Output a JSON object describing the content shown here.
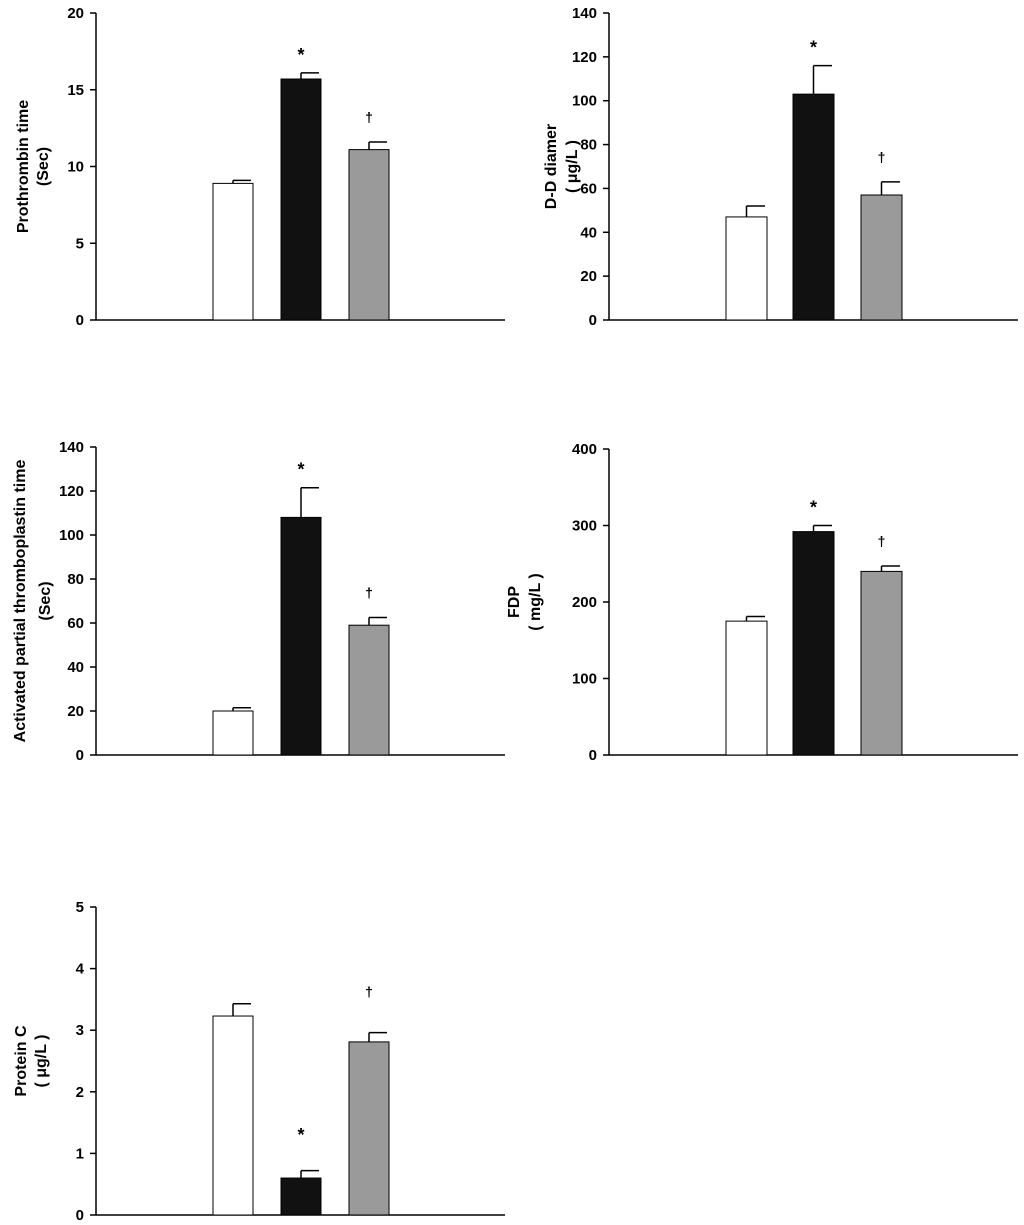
{
  "colors": {
    "group1": "#ffffff",
    "group2": "#111111",
    "group3": "#9a9a9a",
    "axis": "#000000"
  },
  "chart_data": [
    {
      "type": "bar",
      "ylabel_lines": [
        "Prothrombin time",
        "(Sec)"
      ],
      "ylim": [
        0,
        20
      ],
      "yticks": [
        0,
        5,
        10,
        15,
        20
      ],
      "values": [
        8.9,
        15.7,
        11.1
      ],
      "errors": [
        0.2,
        0.4,
        0.5
      ],
      "markers": [
        "",
        "*",
        "†"
      ]
    },
    {
      "type": "bar",
      "ylabel_lines": [
        "D-D diamer",
        "( μg/L )"
      ],
      "ylim": [
        0,
        140
      ],
      "yticks": [
        0,
        20,
        40,
        60,
        80,
        100,
        120,
        140
      ],
      "values": [
        47,
        103,
        57
      ],
      "errors": [
        5,
        13,
        6
      ],
      "markers": [
        "",
        "*",
        "†"
      ]
    },
    {
      "type": "bar",
      "ylabel_lines": [
        "Activated partial thromboplastin time",
        "(Sec)"
      ],
      "ylim": [
        0,
        140
      ],
      "yticks": [
        0,
        20,
        40,
        60,
        80,
        100,
        120,
        140
      ],
      "values": [
        20,
        108,
        59
      ],
      "errors": [
        1.5,
        13.5,
        3.5
      ],
      "markers": [
        "",
        "*",
        "†"
      ]
    },
    {
      "type": "bar",
      "ylabel_lines": [
        "FDP",
        "( mg/L )"
      ],
      "ylim": [
        0,
        400
      ],
      "yticks": [
        0,
        100,
        200,
        300,
        400
      ],
      "values": [
        175,
        292,
        240
      ],
      "errors": [
        6,
        8,
        7
      ],
      "markers": [
        "",
        "*",
        "†"
      ]
    },
    {
      "type": "bar",
      "ylabel_lines": [
        "Protein C",
        "( μg/L )"
      ],
      "ylim": [
        0,
        5
      ],
      "yticks": [
        0,
        1,
        2,
        3,
        4,
        5
      ],
      "values": [
        3.23,
        0.6,
        2.81
      ],
      "errors": [
        0.2,
        0.12,
        0.15
      ],
      "markers": [
        "",
        "*",
        "†"
      ]
    }
  ]
}
